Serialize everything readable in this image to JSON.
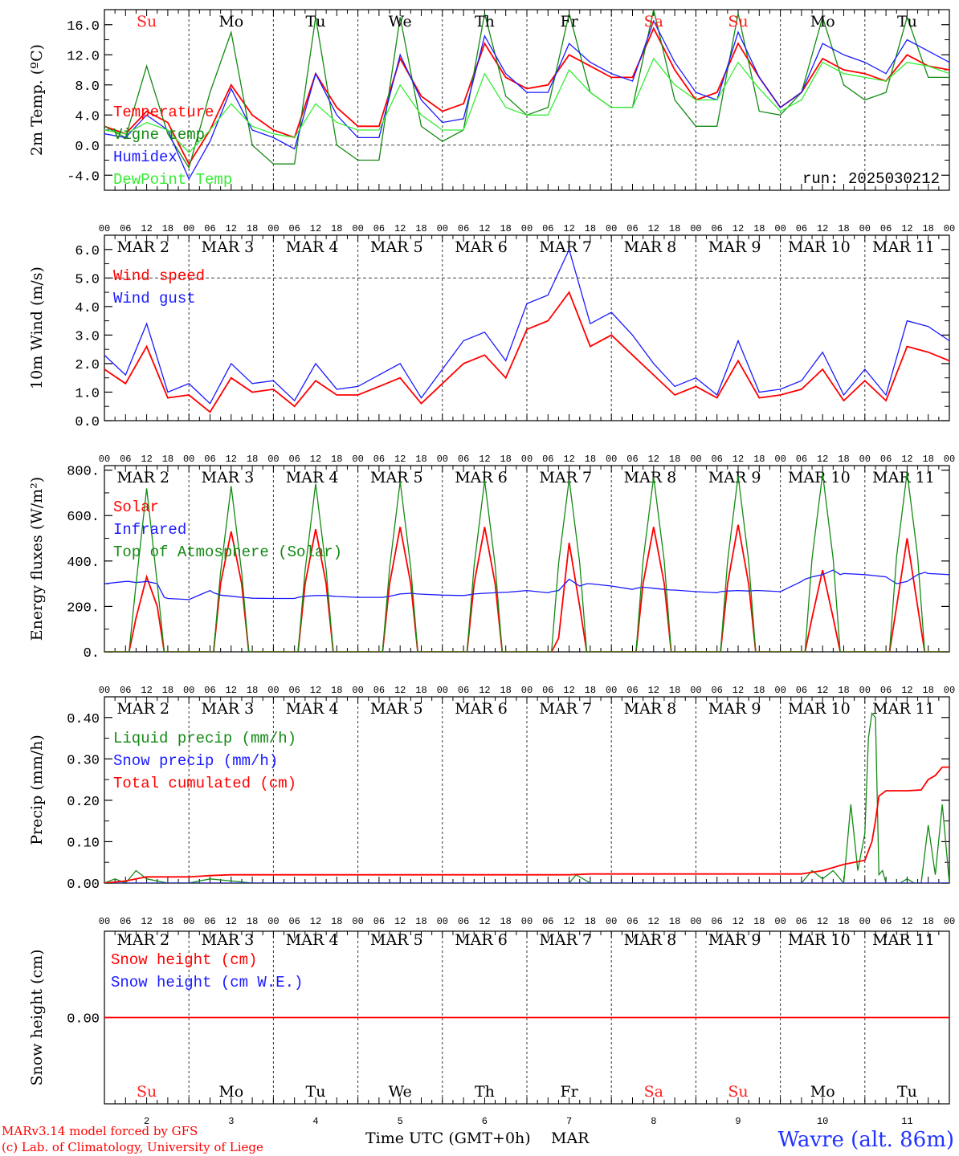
{
  "colors": {
    "red": "#ff0000",
    "dark_green": "#138a13",
    "blue": "#1a1aff",
    "light_green": "#33ee33",
    "weekend": "#ff2020",
    "axis": "#000000",
    "station": "#2233ff"
  },
  "days": [
    "Su",
    "Mo",
    "Tu",
    "We",
    "Th",
    "Fr",
    "Sa",
    "Su",
    "Mo",
    "Tu"
  ],
  "day_is_weekend": [
    true,
    false,
    false,
    false,
    false,
    false,
    true,
    true,
    false,
    false
  ],
  "date_labels": [
    "MAR  2",
    "MAR  3",
    "MAR  4",
    "MAR  5",
    "MAR  6",
    "MAR  7",
    "MAR  8",
    "MAR  9",
    "MAR 10",
    "MAR 11"
  ],
  "day_numbers": [
    "2",
    "3",
    "4",
    "5",
    "6",
    "7",
    "8",
    "9",
    "10",
    "11"
  ],
  "hour_ticks": [
    "00",
    "06",
    "12",
    "18"
  ],
  "hour_end": "00",
  "run_label": "run: 2025030212",
  "footer": {
    "model_line1": "MARv3.14 model forced by GFS",
    "model_line2": "(c) Lab. of Climatology, University of Liege",
    "time_label": "Time UTC (GMT+0h)",
    "month_label": "MAR",
    "station": "Wavre (alt. 86m)"
  },
  "chart_data": [
    {
      "type": "line",
      "ylabel": "2m Temp. (ºC)",
      "ylim": [
        -6,
        18
      ],
      "yticks": [
        "-4.0",
        "0.0",
        "4.0",
        "8.0",
        "12.0",
        "16.0"
      ],
      "ytick_values": [
        -4,
        0,
        4,
        8,
        12,
        16
      ],
      "dashed_y": 0,
      "x_hours": [
        0,
        6,
        12,
        18,
        24,
        30,
        36,
        42,
        48,
        54,
        60,
        66,
        72,
        78,
        84,
        90,
        96,
        102,
        108,
        114,
        120,
        126,
        132,
        138,
        144,
        150,
        156,
        162,
        168,
        174,
        180,
        186,
        192,
        198,
        204,
        210,
        216,
        222,
        228,
        234,
        240
      ],
      "series": [
        {
          "name": "Temperature",
          "color": "red",
          "values": [
            2.5,
            1.5,
            4.5,
            3,
            -2.5,
            2,
            8,
            4,
            2,
            1,
            9.5,
            5,
            2.5,
            2.5,
            11.5,
            6.5,
            4.5,
            5.5,
            13.5,
            9,
            7.5,
            8,
            12,
            10.5,
            9,
            9,
            15.5,
            10,
            6,
            7,
            13.5,
            9,
            5,
            7,
            11.5,
            10,
            9.5,
            8.5,
            12,
            10.5,
            10
          ]
        },
        {
          "name": "Vigne temp",
          "color": "dark_green",
          "values": [
            2.5,
            1,
            10.5,
            1.5,
            -3,
            7,
            15,
            0,
            -2.5,
            -2.5,
            17,
            0,
            -2,
            -2,
            17,
            2.5,
            0.5,
            2,
            17.5,
            6.5,
            4,
            5,
            17.5,
            7,
            5,
            5,
            18,
            6,
            2.5,
            2.5,
            17.5,
            4.5,
            4,
            7,
            17,
            8,
            6,
            7,
            17,
            9,
            9
          ]
        },
        {
          "name": "Humidex",
          "color": "blue",
          "values": [
            1.5,
            1,
            4,
            2,
            -4.5,
            0.5,
            7.5,
            2,
            1,
            -0.5,
            9.5,
            4,
            1,
            1,
            12,
            6,
            3,
            3.5,
            14.5,
            9.5,
            7,
            7,
            13.5,
            11,
            9.5,
            8.5,
            16.5,
            11,
            7,
            6,
            15,
            9,
            5,
            7,
            13.5,
            12,
            11,
            9.5,
            14,
            12.5,
            11
          ]
        },
        {
          "name": "DewPoint Temp",
          "color": "light_green",
          "values": [
            2,
            1.5,
            3,
            2,
            -1,
            2,
            5.5,
            2.5,
            1.5,
            1,
            5.5,
            3,
            2,
            2,
            8,
            4,
            2,
            2,
            9.5,
            5,
            4,
            4,
            10,
            7,
            5,
            5,
            11.5,
            8,
            6,
            6,
            11,
            7.5,
            4.5,
            6,
            11,
            9.5,
            9,
            8.5,
            11,
            10.5,
            9.5
          ]
        }
      ]
    },
    {
      "type": "line",
      "ylabel": "10m Wind (m/s)",
      "ylim": [
        0,
        6.5
      ],
      "yticks": [
        "0.0",
        "1.0",
        "2.0",
        "3.0",
        "4.0",
        "5.0",
        "6.0"
      ],
      "ytick_values": [
        0,
        1,
        2,
        3,
        4,
        5,
        6
      ],
      "dashed_y": 5,
      "x_hours": [
        0,
        6,
        12,
        18,
        24,
        30,
        36,
        42,
        48,
        54,
        60,
        66,
        72,
        78,
        84,
        90,
        96,
        102,
        108,
        114,
        120,
        126,
        132,
        138,
        144,
        150,
        156,
        162,
        168,
        174,
        180,
        186,
        192,
        198,
        204,
        210,
        216,
        222,
        228,
        234,
        240
      ],
      "series": [
        {
          "name": "Wind speed",
          "color": "red",
          "values": [
            1.8,
            1.3,
            2.6,
            0.8,
            0.9,
            0.3,
            1.5,
            1.0,
            1.1,
            0.5,
            1.4,
            0.9,
            0.9,
            1.2,
            1.5,
            0.6,
            1.3,
            2.0,
            2.3,
            1.5,
            3.2,
            3.5,
            4.5,
            2.6,
            3.0,
            2.3,
            1.6,
            0.9,
            1.2,
            0.8,
            2.1,
            0.8,
            0.9,
            1.1,
            1.8,
            0.7,
            1.4,
            0.7,
            2.6,
            2.4,
            2.1
          ]
        },
        {
          "name": "Wind gust",
          "color": "blue",
          "values": [
            2.3,
            1.6,
            3.4,
            1.0,
            1.3,
            0.6,
            2.0,
            1.3,
            1.4,
            0.7,
            2.0,
            1.1,
            1.2,
            1.6,
            2.0,
            0.8,
            1.8,
            2.8,
            3.1,
            2.1,
            4.1,
            4.4,
            6.0,
            3.4,
            3.8,
            3.0,
            2.0,
            1.2,
            1.5,
            0.9,
            2.8,
            1.0,
            1.1,
            1.4,
            2.4,
            0.9,
            1.8,
            0.9,
            3.5,
            3.3,
            2.8
          ]
        }
      ]
    },
    {
      "type": "line",
      "ylabel": "Energy fluxes (W/m²)",
      "ylim": [
        0,
        820
      ],
      "yticks": [
        "0.",
        "200.",
        "400.",
        "600.",
        "800."
      ],
      "ytick_values": [
        0,
        200,
        400,
        600,
        800
      ],
      "x_hours": [
        0,
        6,
        7,
        9,
        12,
        15,
        17,
        18,
        24,
        30,
        31,
        33,
        36,
        39,
        41,
        42,
        48,
        54,
        55,
        57,
        60,
        63,
        65,
        66,
        72,
        78,
        79,
        81,
        84,
        87,
        89,
        90,
        96,
        102,
        103,
        105,
        108,
        111,
        113,
        114,
        120,
        126,
        127,
        129,
        132,
        135,
        137,
        138,
        144,
        150,
        151,
        153,
        156,
        159,
        161,
        162,
        168,
        174,
        175,
        177,
        180,
        183,
        185,
        186,
        192,
        198,
        199,
        201,
        204,
        207,
        209,
        210,
        216,
        222,
        223,
        225,
        228,
        231,
        233,
        234,
        240
      ],
      "series": [
        {
          "name": "Solar",
          "color": "red",
          "values": [
            0,
            0,
            0,
            150,
            330,
            200,
            0,
            0,
            0,
            0,
            0,
            300,
            530,
            300,
            0,
            0,
            0,
            0,
            0,
            300,
            540,
            300,
            0,
            0,
            0,
            0,
            0,
            300,
            550,
            300,
            0,
            0,
            0,
            0,
            0,
            300,
            550,
            300,
            0,
            0,
            0,
            0,
            0,
            60,
            480,
            200,
            0,
            0,
            0,
            0,
            0,
            300,
            550,
            300,
            0,
            0,
            0,
            0,
            0,
            300,
            560,
            300,
            0,
            0,
            0,
            0,
            0,
            150,
            360,
            150,
            0,
            0,
            0,
            0,
            0,
            200,
            500,
            200,
            0,
            0,
            0
          ]
        },
        {
          "name": "Infrared",
          "color": "blue",
          "values": [
            300,
            310,
            310,
            305,
            310,
            300,
            240,
            235,
            230,
            270,
            260,
            250,
            245,
            240,
            238,
            236,
            235,
            235,
            240,
            245,
            248,
            248,
            245,
            244,
            240,
            240,
            240,
            245,
            255,
            258,
            255,
            254,
            250,
            248,
            250,
            255,
            258,
            260,
            262,
            262,
            270,
            260,
            265,
            270,
            320,
            290,
            300,
            300,
            290,
            275,
            280,
            285,
            280,
            275,
            272,
            272,
            265,
            260,
            265,
            268,
            270,
            268,
            270,
            270,
            265,
            310,
            320,
            330,
            340,
            360,
            340,
            345,
            340,
            330,
            320,
            300,
            310,
            340,
            350,
            345,
            340
          ]
        },
        {
          "name": "Top of Atmosphere (Solar)",
          "color": "dark_green",
          "values": [
            0,
            0,
            0,
            300,
            720,
            300,
            0,
            0,
            0,
            0,
            0,
            350,
            730,
            350,
            0,
            0,
            0,
            0,
            0,
            360,
            740,
            360,
            0,
            0,
            0,
            0,
            0,
            370,
            750,
            370,
            0,
            0,
            0,
            0,
            0,
            380,
            755,
            380,
            0,
            0,
            0,
            0,
            0,
            390,
            760,
            390,
            0,
            0,
            0,
            0,
            0,
            400,
            770,
            400,
            0,
            0,
            0,
            0,
            0,
            400,
            775,
            400,
            0,
            0,
            0,
            0,
            0,
            410,
            785,
            410,
            0,
            0,
            0,
            0,
            0,
            420,
            790,
            420,
            0,
            0,
            0
          ]
        }
      ]
    },
    {
      "type": "line",
      "ylabel": "Precip (mm/h)",
      "ylim": [
        0,
        0.45
      ],
      "yticks": [
        "0.00",
        "0.10",
        "0.20",
        "0.30",
        "0.40"
      ],
      "ytick_values": [
        0,
        0.1,
        0.2,
        0.3,
        0.4
      ],
      "series": [
        {
          "name": "Liquid precip (mm/h)",
          "color": "dark_green",
          "x_hours": [
            0,
            3,
            6,
            9,
            12,
            18,
            24,
            30,
            36,
            42,
            48,
            90,
            132,
            134,
            138,
            144,
            186,
            198,
            201,
            204,
            207,
            210,
            212,
            214,
            216,
            217,
            218,
            219,
            220,
            221,
            222,
            224,
            226,
            228,
            230,
            232,
            234,
            236,
            238,
            240
          ],
          "values": [
            0,
            0.01,
            0,
            0.03,
            0.01,
            0,
            0,
            0.01,
            0.005,
            0,
            0,
            0,
            0,
            0.02,
            0,
            0,
            0,
            0,
            0.03,
            0.01,
            0.03,
            0,
            0.19,
            0.03,
            0.12,
            0.35,
            0.41,
            0.4,
            0.02,
            0.03,
            0,
            0,
            0,
            0.01,
            0,
            0,
            0.14,
            0.02,
            0.19,
            0
          ]
        },
        {
          "name": "Snow precip (mm/h)",
          "color": "blue",
          "x_hours": [
            0,
            240
          ],
          "values": [
            0,
            0
          ]
        },
        {
          "name": "Total cumulated (cm)",
          "color": "red",
          "x_hours": [
            0,
            6,
            12,
            18,
            24,
            30,
            36,
            96,
            132,
            138,
            198,
            204,
            210,
            216,
            218,
            219,
            220,
            222,
            228,
            232,
            234,
            236,
            238,
            240
          ],
          "values": [
            0,
            0.005,
            0.015,
            0.015,
            0.015,
            0.018,
            0.02,
            0.02,
            0.02,
            0.022,
            0.022,
            0.03,
            0.045,
            0.055,
            0.1,
            0.15,
            0.21,
            0.223,
            0.223,
            0.225,
            0.25,
            0.26,
            0.28,
            0.28
          ]
        }
      ]
    },
    {
      "type": "line",
      "ylabel": "Snow height (cm)",
      "ylim": [
        -1,
        1
      ],
      "yticks": [
        "0.00"
      ],
      "ytick_values": [
        0
      ],
      "series": [
        {
          "name": "Snow height (cm)",
          "color": "red",
          "x_hours": [
            0,
            240
          ],
          "values": [
            0,
            0
          ]
        },
        {
          "name": "Snow height (cm W.E.)",
          "color": "blue",
          "x_hours": [],
          "values": []
        }
      ]
    }
  ]
}
